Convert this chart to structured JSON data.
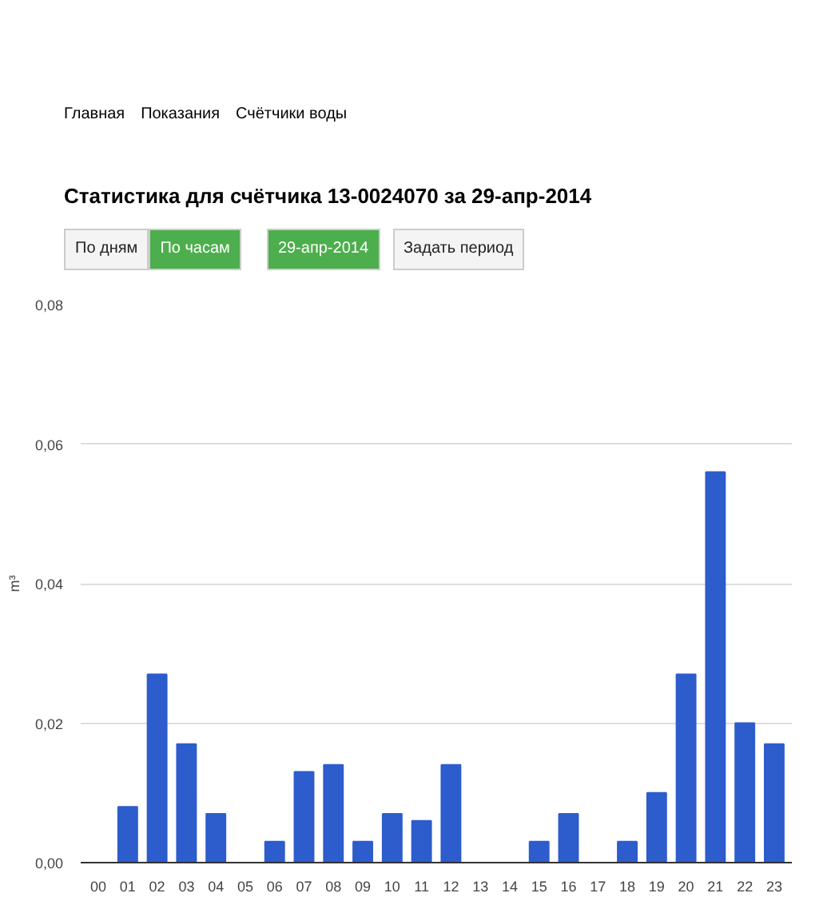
{
  "chart_data": {
    "type": "bar",
    "title": "Статистика для счётчика 13-0024070 за 29-апр-2014",
    "ylabel": "m³",
    "annotations": [
      "Главная",
      "Показания",
      "Счётчики воды",
      "По дням",
      "По часам",
      "29-апр-2014",
      "Задать период"
    ],
    "categories": [
      "00",
      "01",
      "02",
      "03",
      "04",
      "05",
      "06",
      "07",
      "08",
      "09",
      "10",
      "11",
      "12",
      "13",
      "14",
      "15",
      "16",
      "17",
      "18",
      "19",
      "20",
      "21",
      "22",
      "23"
    ],
    "values": [
      0,
      0.008,
      0.027,
      0.017,
      0.007,
      0,
      0.003,
      0.013,
      0.014,
      0.003,
      0.007,
      0.006,
      0.014,
      0,
      0,
      0.003,
      0.007,
      0,
      0.003,
      0.01,
      0.027,
      0.056,
      0.02,
      0.017
    ],
    "color": "#2d5ccc",
    "ylim": [
      0,
      0.08
    ],
    "yticks": [
      {
        "value": 0,
        "label": "0,00"
      },
      {
        "value": 0.02,
        "label": "0,02"
      },
      {
        "value": 0.04,
        "label": "0,04"
      },
      {
        "value": 0.06,
        "label": "0,06"
      },
      {
        "value": 0.08,
        "label": "0,08"
      }
    ],
    "grid": "y"
  }
}
